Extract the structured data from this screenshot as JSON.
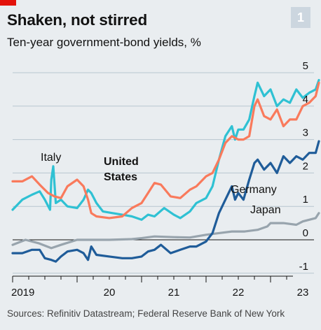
{
  "header": {
    "title": "Shaken, not stirred",
    "subtitle": "Ten-year government-bond yields, %",
    "badge": "1"
  },
  "source": "Sources: Refinitiv Datastream; Federal Reserve Bank of New York",
  "colors": {
    "background": "#e9edf0",
    "accent_tag": "#e3120b",
    "badge": "#ccd6df",
    "italy": "#2fc1d3",
    "united_states": "#f97a5c",
    "germany": "#1f5c99",
    "japan": "#98a4ad"
  },
  "chart_data": {
    "type": "line",
    "title": "Shaken, not stirred",
    "subtitle": "Ten-year government-bond yields, %",
    "xlabel": "",
    "ylabel": "",
    "y_ticks": [
      "5",
      "4",
      "3",
      "2",
      "1",
      "0",
      "-1"
    ],
    "y_tick_values": [
      5,
      4,
      3,
      2,
      1,
      0,
      -1
    ],
    "ylim": [
      -1,
      5
    ],
    "x_ticks": [
      "2019",
      "20",
      "21",
      "22",
      "23"
    ],
    "x_tick_values": [
      2019.0,
      2020.0,
      2021.0,
      2022.0,
      2023.0
    ],
    "xlim": [
      2019.0,
      2023.9
    ],
    "grid": "horizontal",
    "series": [
      {
        "name": "Italy",
        "label_text": "Italy",
        "x": [
          2019.0,
          2019.15,
          2019.3,
          2019.42,
          2019.5,
          2019.58,
          2019.6,
          2019.63,
          2019.67,
          2019.75,
          2019.85,
          2020.0,
          2020.1,
          2020.17,
          2020.22,
          2020.3,
          2020.4,
          2020.55,
          2020.7,
          2020.85,
          2021.0,
          2021.1,
          2021.2,
          2021.35,
          2021.5,
          2021.6,
          2021.75,
          2021.85,
          2022.0,
          2022.1,
          2022.2,
          2022.3,
          2022.4,
          2022.45,
          2022.5,
          2022.58,
          2022.67,
          2022.75,
          2022.8,
          2022.9,
          2023.0,
          2023.1,
          2023.2,
          2023.3,
          2023.4,
          2023.5,
          2023.6,
          2023.7,
          2023.75
        ],
        "values": [
          0.9,
          1.2,
          1.35,
          1.45,
          1.2,
          0.9,
          1.8,
          2.2,
          1.1,
          1.2,
          1.0,
          0.95,
          1.2,
          1.5,
          1.4,
          1.1,
          0.85,
          0.8,
          0.75,
          0.7,
          0.6,
          0.75,
          0.7,
          0.95,
          0.75,
          0.65,
          0.85,
          1.1,
          1.25,
          1.6,
          2.4,
          3.1,
          3.4,
          3.0,
          3.3,
          3.3,
          3.6,
          4.3,
          4.7,
          4.3,
          4.5,
          4.0,
          4.2,
          4.1,
          4.5,
          4.25,
          4.4,
          4.5,
          4.78
        ]
      },
      {
        "name": "United States",
        "label_text": "United States",
        "x": [
          2019.0,
          2019.15,
          2019.3,
          2019.42,
          2019.55,
          2019.65,
          2019.75,
          2019.85,
          2020.0,
          2020.1,
          2020.17,
          2020.22,
          2020.3,
          2020.5,
          2020.7,
          2020.85,
          2021.0,
          2021.1,
          2021.2,
          2021.3,
          2021.45,
          2021.6,
          2021.75,
          2021.85,
          2022.0,
          2022.1,
          2022.2,
          2022.3,
          2022.4,
          2022.5,
          2022.58,
          2022.67,
          2022.75,
          2022.8,
          2022.9,
          2023.0,
          2023.1,
          2023.2,
          2023.3,
          2023.4,
          2023.5,
          2023.6,
          2023.7,
          2023.75
        ],
        "values": [
          1.75,
          1.75,
          1.9,
          1.65,
          1.4,
          1.3,
          1.25,
          1.6,
          1.8,
          1.6,
          1.2,
          0.8,
          0.7,
          0.65,
          0.7,
          0.95,
          1.1,
          1.4,
          1.7,
          1.65,
          1.3,
          1.25,
          1.5,
          1.6,
          1.9,
          2.0,
          2.4,
          2.9,
          3.1,
          3.0,
          3.0,
          3.1,
          4.0,
          4.2,
          3.7,
          3.6,
          3.9,
          3.4,
          3.6,
          3.6,
          4.0,
          4.1,
          4.3,
          4.7
        ]
      },
      {
        "name": "Germany",
        "label_text": "Germany",
        "x": [
          2019.0,
          2019.15,
          2019.3,
          2019.42,
          2019.5,
          2019.6,
          2019.67,
          2019.75,
          2019.85,
          2020.0,
          2020.1,
          2020.17,
          2020.22,
          2020.3,
          2020.5,
          2020.7,
          2020.85,
          2021.0,
          2021.1,
          2021.2,
          2021.3,
          2021.45,
          2021.6,
          2021.75,
          2021.85,
          2022.0,
          2022.1,
          2022.2,
          2022.3,
          2022.4,
          2022.45,
          2022.5,
          2022.58,
          2022.67,
          2022.75,
          2022.8,
          2022.9,
          2023.0,
          2023.1,
          2023.2,
          2023.3,
          2023.4,
          2023.5,
          2023.6,
          2023.7,
          2023.75
        ],
        "values": [
          -0.4,
          -0.4,
          -0.3,
          -0.3,
          -0.55,
          -0.6,
          -0.65,
          -0.5,
          -0.35,
          -0.3,
          -0.4,
          -0.6,
          -0.2,
          -0.45,
          -0.5,
          -0.55,
          -0.55,
          -0.5,
          -0.35,
          -0.3,
          -0.15,
          -0.4,
          -0.3,
          -0.2,
          -0.2,
          -0.05,
          0.2,
          0.8,
          1.2,
          1.6,
          1.2,
          1.4,
          1.2,
          1.8,
          2.3,
          2.4,
          2.1,
          2.3,
          2.0,
          2.5,
          2.3,
          2.5,
          2.4,
          2.6,
          2.6,
          2.95
        ]
      },
      {
        "name": "Japan",
        "label_text": "Japan",
        "x": [
          2019.0,
          2019.2,
          2019.4,
          2019.6,
          2019.75,
          2020.0,
          2020.2,
          2020.5,
          2020.85,
          2021.0,
          2021.2,
          2021.5,
          2021.75,
          2022.0,
          2022.2,
          2022.4,
          2022.6,
          2022.8,
          2022.95,
          2023.0,
          2023.2,
          2023.4,
          2023.5,
          2023.6,
          2023.7,
          2023.75
        ],
        "values": [
          -0.15,
          0.0,
          -0.1,
          -0.25,
          -0.15,
          0.0,
          0.0,
          0.0,
          0.02,
          0.05,
          0.1,
          0.08,
          0.07,
          0.15,
          0.2,
          0.25,
          0.25,
          0.3,
          0.4,
          0.5,
          0.5,
          0.45,
          0.55,
          0.6,
          0.65,
          0.8
        ]
      }
    ]
  }
}
